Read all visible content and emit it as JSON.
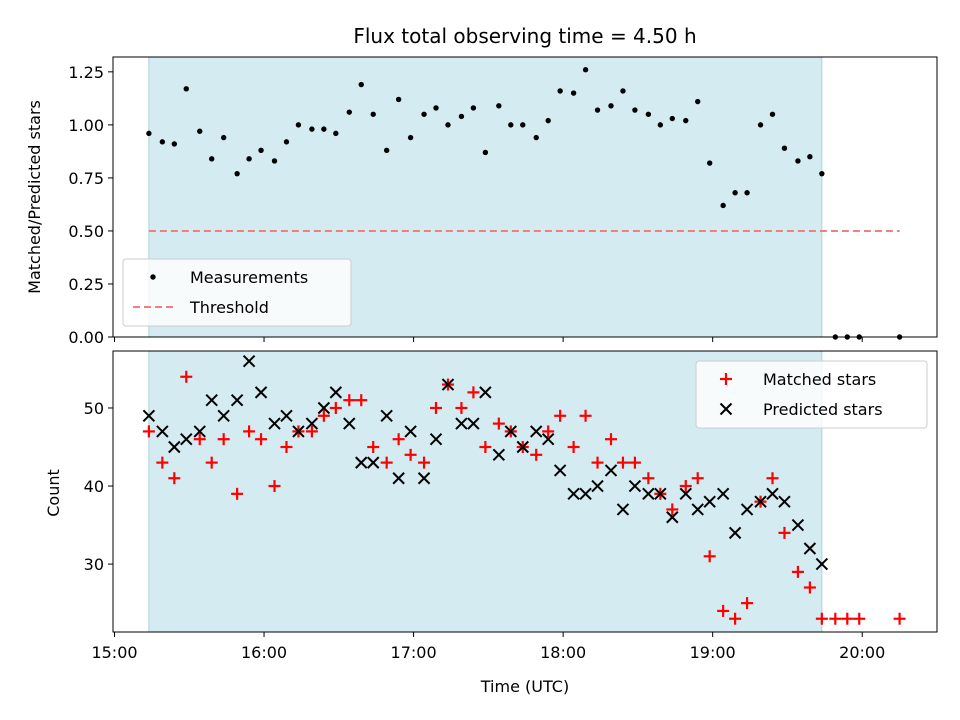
{
  "chart_data": {
    "type": "scatter",
    "title": "Flux total observing time = 4.50 h",
    "xlabel": "Time (UTC)",
    "x_ticks": [
      "15:00",
      "16:00",
      "17:00",
      "18:00",
      "19:00",
      "20:00"
    ],
    "x_tick_hours": [
      15,
      16,
      17,
      18,
      19,
      20
    ],
    "xlim": [
      14.99,
      20.5
    ],
    "observing_window": [
      15.23,
      19.73
    ],
    "observing_window_color": "#d4ebf1",
    "panels": [
      {
        "ylabel": "Matched/Predicted stars",
        "ylim": [
          0,
          1.32
        ],
        "y_ticks": [
          0.0,
          0.25,
          0.5,
          0.75,
          1.0,
          1.25
        ],
        "y_tick_labels": [
          "0.00",
          "0.25",
          "0.50",
          "0.75",
          "1.00",
          "1.25"
        ],
        "threshold": 0.5,
        "threshold_x_range": [
          15.23,
          20.25
        ],
        "threshold_color": "#f08080",
        "legend": {
          "location": "lower-left",
          "entries": [
            "Measurements",
            "Threshold"
          ]
        },
        "series": [
          {
            "name": "Measurements",
            "marker": "dot",
            "color": "#000000",
            "points": [
              [
                15.23,
                0.96
              ],
              [
                15.32,
                0.92
              ],
              [
                15.4,
                0.91
              ],
              [
                15.48,
                1.17
              ],
              [
                15.57,
                0.97
              ],
              [
                15.65,
                0.84
              ],
              [
                15.73,
                0.94
              ],
              [
                15.82,
                0.77
              ],
              [
                15.9,
                0.84
              ],
              [
                15.98,
                0.88
              ],
              [
                16.07,
                0.83
              ],
              [
                16.15,
                0.92
              ],
              [
                16.23,
                1.0
              ],
              [
                16.32,
                0.98
              ],
              [
                16.4,
                0.98
              ],
              [
                16.48,
                0.96
              ],
              [
                16.57,
                1.06
              ],
              [
                16.65,
                1.19
              ],
              [
                16.73,
                1.05
              ],
              [
                16.82,
                0.88
              ],
              [
                16.9,
                1.12
              ],
              [
                16.98,
                0.94
              ],
              [
                17.07,
                1.05
              ],
              [
                17.15,
                1.08
              ],
              [
                17.23,
                1.0
              ],
              [
                17.32,
                1.04
              ],
              [
                17.4,
                1.08
              ],
              [
                17.48,
                0.87
              ],
              [
                17.57,
                1.09
              ],
              [
                17.65,
                1.0
              ],
              [
                17.73,
                1.0
              ],
              [
                17.82,
                0.94
              ],
              [
                17.9,
                1.02
              ],
              [
                17.98,
                1.16
              ],
              [
                18.07,
                1.15
              ],
              [
                18.15,
                1.26
              ],
              [
                18.23,
                1.07
              ],
              [
                18.32,
                1.09
              ],
              [
                18.4,
                1.16
              ],
              [
                18.48,
                1.07
              ],
              [
                18.57,
                1.05
              ],
              [
                18.65,
                1.0
              ],
              [
                18.73,
                1.03
              ],
              [
                18.82,
                1.02
              ],
              [
                18.9,
                1.11
              ],
              [
                18.98,
                0.82
              ],
              [
                19.07,
                0.62
              ],
              [
                19.15,
                0.68
              ],
              [
                19.23,
                0.68
              ],
              [
                19.32,
                1.0
              ],
              [
                19.4,
                1.05
              ],
              [
                19.48,
                0.89
              ],
              [
                19.57,
                0.83
              ],
              [
                19.65,
                0.85
              ],
              [
                19.73,
                0.77
              ],
              [
                19.82,
                0.0
              ],
              [
                19.9,
                0.0
              ],
              [
                19.98,
                0.0
              ],
              [
                20.25,
                0.0
              ]
            ]
          }
        ]
      },
      {
        "ylabel": "Count",
        "ylim": [
          21.3,
          57.3
        ],
        "y_ticks": [
          30,
          40,
          50
        ],
        "y_tick_labels": [
          "30",
          "40",
          "50"
        ],
        "legend": {
          "location": "top-right",
          "entries": [
            "Matched stars",
            "Predicted stars"
          ]
        },
        "series": [
          {
            "name": "Matched stars",
            "marker": "plus",
            "color": "#ff0000",
            "points": [
              [
                15.23,
                47
              ],
              [
                15.32,
                43
              ],
              [
                15.4,
                41
              ],
              [
                15.48,
                54
              ],
              [
                15.57,
                46
              ],
              [
                15.65,
                43
              ],
              [
                15.73,
                46
              ],
              [
                15.82,
                39
              ],
              [
                15.9,
                47
              ],
              [
                15.98,
                46
              ],
              [
                16.07,
                40
              ],
              [
                16.15,
                45
              ],
              [
                16.23,
                47
              ],
              [
                16.32,
                47
              ],
              [
                16.4,
                49
              ],
              [
                16.48,
                50
              ],
              [
                16.57,
                51
              ],
              [
                16.65,
                51
              ],
              [
                16.73,
                45
              ],
              [
                16.82,
                43
              ],
              [
                16.9,
                46
              ],
              [
                16.98,
                44
              ],
              [
                17.07,
                43
              ],
              [
                17.15,
                50
              ],
              [
                17.23,
                53
              ],
              [
                17.32,
                50
              ],
              [
                17.4,
                52
              ],
              [
                17.48,
                45
              ],
              [
                17.57,
                48
              ],
              [
                17.65,
                47
              ],
              [
                17.73,
                45
              ],
              [
                17.82,
                44
              ],
              [
                17.9,
                47
              ],
              [
                17.98,
                49
              ],
              [
                18.07,
                45
              ],
              [
                18.15,
                49
              ],
              [
                18.23,
                43
              ],
              [
                18.32,
                46
              ],
              [
                18.4,
                43
              ],
              [
                18.48,
                43
              ],
              [
                18.57,
                41
              ],
              [
                18.65,
                39
              ],
              [
                18.73,
                37
              ],
              [
                18.82,
                40
              ],
              [
                18.9,
                41
              ],
              [
                18.98,
                31
              ],
              [
                19.07,
                24
              ],
              [
                19.15,
                23
              ],
              [
                19.23,
                25
              ],
              [
                19.32,
                38
              ],
              [
                19.4,
                41
              ],
              [
                19.48,
                34
              ],
              [
                19.57,
                29
              ],
              [
                19.65,
                27
              ],
              [
                19.73,
                23
              ],
              [
                19.82,
                23
              ],
              [
                19.9,
                23
              ],
              [
                19.98,
                23
              ],
              [
                20.25,
                23
              ]
            ]
          },
          {
            "name": "Predicted stars",
            "marker": "x",
            "color": "#000000",
            "points": [
              [
                15.23,
                49
              ],
              [
                15.32,
                47
              ],
              [
                15.4,
                45
              ],
              [
                15.48,
                46
              ],
              [
                15.57,
                47
              ],
              [
                15.65,
                51
              ],
              [
                15.73,
                49
              ],
              [
                15.82,
                51
              ],
              [
                15.9,
                56
              ],
              [
                15.98,
                52
              ],
              [
                16.07,
                48
              ],
              [
                16.15,
                49
              ],
              [
                16.23,
                47
              ],
              [
                16.32,
                48
              ],
              [
                16.4,
                50
              ],
              [
                16.48,
                52
              ],
              [
                16.57,
                48
              ],
              [
                16.65,
                43
              ],
              [
                16.73,
                43
              ],
              [
                16.82,
                49
              ],
              [
                16.9,
                41
              ],
              [
                16.98,
                47
              ],
              [
                17.07,
                41
              ],
              [
                17.15,
                46
              ],
              [
                17.23,
                53
              ],
              [
                17.32,
                48
              ],
              [
                17.4,
                48
              ],
              [
                17.48,
                52
              ],
              [
                17.57,
                44
              ],
              [
                17.65,
                47
              ],
              [
                17.73,
                45
              ],
              [
                17.82,
                47
              ],
              [
                17.9,
                46
              ],
              [
                17.98,
                42
              ],
              [
                18.07,
                39
              ],
              [
                18.15,
                39
              ],
              [
                18.23,
                40
              ],
              [
                18.32,
                42
              ],
              [
                18.4,
                37
              ],
              [
                18.48,
                40
              ],
              [
                18.57,
                39
              ],
              [
                18.65,
                39
              ],
              [
                18.73,
                36
              ],
              [
                18.82,
                39
              ],
              [
                18.9,
                37
              ],
              [
                18.98,
                38
              ],
              [
                19.07,
                39
              ],
              [
                19.15,
                34
              ],
              [
                19.23,
                37
              ],
              [
                19.32,
                38
              ],
              [
                19.4,
                39
              ],
              [
                19.48,
                38
              ],
              [
                19.57,
                35
              ],
              [
                19.65,
                32
              ],
              [
                19.73,
                30
              ]
            ]
          }
        ]
      }
    ]
  }
}
